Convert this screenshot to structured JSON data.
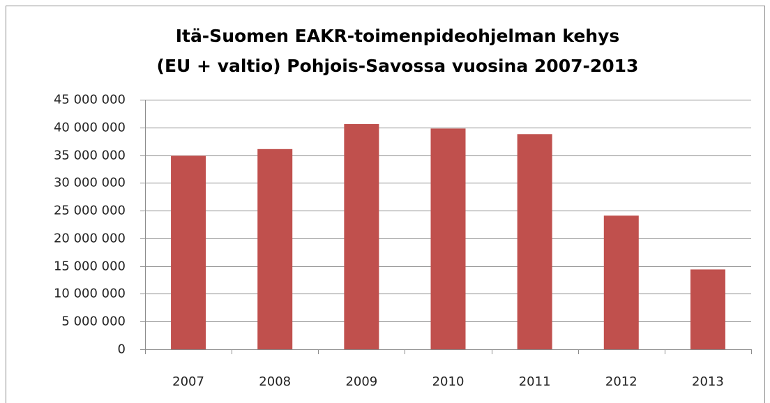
{
  "chart_data": {
    "type": "bar",
    "title": [
      "Itä-Suomen EAKR-toimenpideohjelman kehys",
      "(EU + valtio) Pohjois-Savossa vuosina 2007-2013"
    ],
    "categories": [
      "2007",
      "2008",
      "2009",
      "2010",
      "2011",
      "2012",
      "2013"
    ],
    "values": [
      34900000,
      36100000,
      40600000,
      39800000,
      38800000,
      24100000,
      14400000
    ],
    "color": "#c0504d",
    "ylim": [
      0,
      45000000
    ],
    "yticks": [
      0,
      {
        "value": 5000000,
        "label": "5 000 000"
      },
      {
        "value": 10000000,
        "label": "10 000 000"
      },
      {
        "value": 15000000,
        "label": "15 000 000"
      },
      {
        "value": 20000000,
        "label": "20 000 000"
      },
      {
        "value": 25000000,
        "label": "25 000 000"
      },
      {
        "value": 30000000,
        "label": "30 000 000"
      },
      {
        "value": 35000000,
        "label": "35 000 000"
      },
      {
        "value": 40000000,
        "label": "40 000 000"
      },
      {
        "value": 45000000,
        "label": "45 000 000"
      }
    ],
    "grid": true
  }
}
